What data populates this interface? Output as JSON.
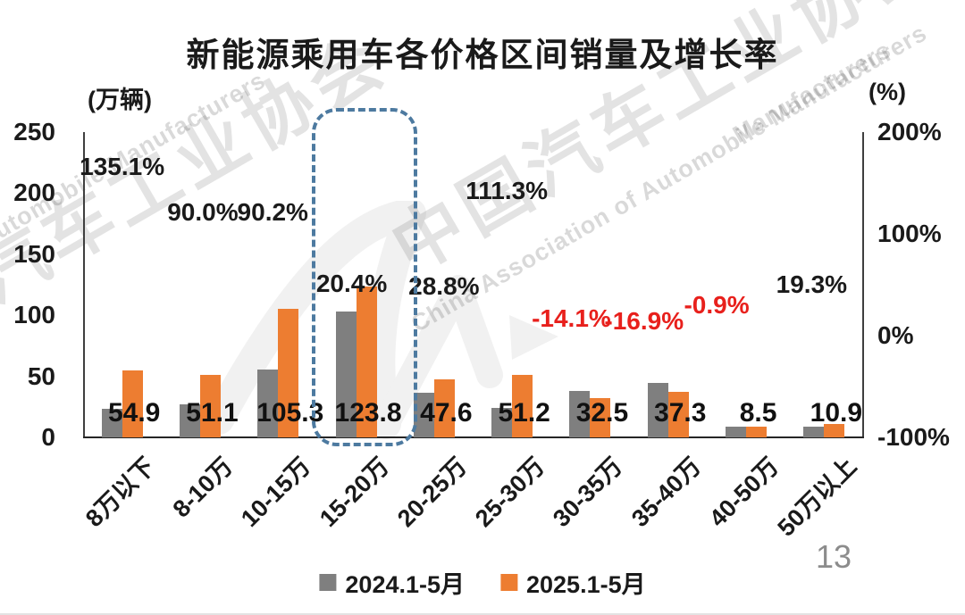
{
  "page": {
    "title": "新能源乘用车各价格区间销量及增长率",
    "page_number": "13",
    "watermark": {
      "cn": "中国汽车工业协会",
      "en": "China Association of Automobile Manufacturers",
      "en_short": "of Automobile Manufacturers",
      "en_frag": "Manufacturers"
    }
  },
  "colors": {
    "series_2024": "#7f7f7f",
    "series_2025": "#ed7d31",
    "positive_label": "#1a1a1a",
    "negative_label": "#e8201c",
    "highlight_box": "#4d7aa0"
  },
  "chart_data": {
    "type": "bar",
    "title": "新能源乘用车各价格区间销量及增长率",
    "left_axis": {
      "unit": "(万辆)",
      "ticks": [
        "250",
        "200",
        "150",
        "100",
        "50",
        "0"
      ],
      "range": [
        0,
        250
      ],
      "grid": false
    },
    "right_axis": {
      "unit": "(%)",
      "ticks": [
        "200%",
        "100%",
        "0%",
        "-100%"
      ],
      "range": [
        -100,
        200
      ]
    },
    "categories": [
      "8万以下",
      "8-10万",
      "10-15万",
      "15-20万",
      "20-25万",
      "25-30万",
      "30-35万",
      "35-40万",
      "40-50万",
      "50万以上"
    ],
    "series": [
      {
        "name": "2024.1-5月",
        "color": "#7f7f7f",
        "values": [
          23.4,
          26.9,
          55.4,
          102.8,
          36.9,
          24.2,
          37.8,
          44.9,
          8.6,
          9.1
        ],
        "note": "values estimated from bar heights (not labeled in chart)"
      },
      {
        "name": "2025.1-5月",
        "color": "#ed7d31",
        "values": [
          54.9,
          51.1,
          105.3,
          123.8,
          47.6,
          51.2,
          32.5,
          37.3,
          8.5,
          10.9
        ]
      }
    ],
    "value_labels": [
      "54.9",
      "51.1",
      "105.3",
      "123.8",
      "47.6",
      "51.2",
      "32.5",
      "37.3",
      "8.5",
      "10.9"
    ],
    "growth_labels": [
      {
        "text": "135.1%",
        "value": 135.1,
        "color": "#1a1a1a"
      },
      {
        "text": "90.0%",
        "value": 90.0,
        "color": "#1a1a1a"
      },
      {
        "text": "90.2%",
        "value": 90.2,
        "color": "#1a1a1a"
      },
      {
        "text": "20.4%",
        "value": 20.4,
        "color": "#1a1a1a"
      },
      {
        "text": "28.8%",
        "value": 28.8,
        "color": "#1a1a1a"
      },
      {
        "text": "111.3%",
        "value": 111.3,
        "color": "#1a1a1a"
      },
      {
        "text": "-14.1%",
        "value": -14.1,
        "color": "#e8201c"
      },
      {
        "text": "-16.9%",
        "value": -16.9,
        "color": "#e8201c"
      },
      {
        "text": "-0.9%",
        "value": -0.9,
        "color": "#e8201c"
      },
      {
        "text": "19.3%",
        "value": 19.3,
        "color": "#1a1a1a"
      }
    ],
    "highlight_category": "15-20万",
    "legend": [
      "2024.1-5月",
      "2025.1-5月"
    ],
    "legend_position": "bottom"
  }
}
